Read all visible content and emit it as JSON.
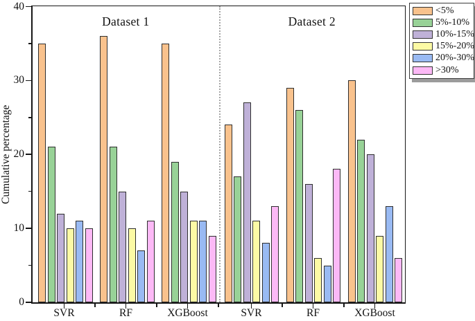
{
  "chart_data": {
    "type": "bar",
    "title": "",
    "xlabel": "",
    "ylabel": "Cumulative percentage",
    "ylim": [
      0,
      40
    ],
    "yticks_major": [
      0,
      10,
      20,
      30,
      40
    ],
    "yticks_minor": [
      5,
      15,
      25,
      35
    ],
    "grid": false,
    "legend_position": "top-right",
    "series_names": [
      "<5%",
      "5%-10%",
      "10%-15%",
      "15%-20%",
      "20%-30%",
      ">30%"
    ],
    "series_colors": [
      "#F9C28D",
      "#98D297",
      "#BFB1D8",
      "#FCFAA5",
      "#99BAF3",
      "#FCB9F6"
    ],
    "panels": [
      {
        "label": "Dataset 1",
        "categories": [
          "SVR",
          "RF",
          "XGBoost"
        ],
        "series": [
          {
            "name": "<5%",
            "values": [
              35,
              36,
              35
            ]
          },
          {
            "name": "5%-10%",
            "values": [
              21,
              21,
              19
            ]
          },
          {
            "name": "10%-15%",
            "values": [
              12,
              15,
              15
            ]
          },
          {
            "name": "15%-20%",
            "values": [
              10,
              10,
              11
            ]
          },
          {
            "name": "20%-30%",
            "values": [
              11,
              7,
              11
            ]
          },
          {
            "name": ">30%",
            "values": [
              10,
              11,
              9
            ]
          }
        ]
      },
      {
        "label": "Dataset 2",
        "categories": [
          "SVR",
          "RF",
          "XGBoost"
        ],
        "series": [
          {
            "name": "<5%",
            "values": [
              24,
              29,
              30
            ]
          },
          {
            "name": "5%-10%",
            "values": [
              17,
              26,
              22
            ]
          },
          {
            "name": "10%-15%",
            "values": [
              27,
              16,
              20
            ]
          },
          {
            "name": "15%-20%",
            "values": [
              11,
              6,
              9
            ]
          },
          {
            "name": "20%-30%",
            "values": [
              8,
              5,
              13
            ]
          },
          {
            "name": ">30%",
            "values": [
              13,
              18,
              6
            ]
          }
        ]
      }
    ],
    "colors": {
      "bar_border": "#2E2E2E",
      "axis": "#161616",
      "divider": "#A6A6A6",
      "legend_shadow": "#9C9C9C",
      "background": "#FFFFFF"
    }
  },
  "legend": {
    "items": [
      {
        "label": "<5%",
        "color": "#F9C28D"
      },
      {
        "label": "5%-10%",
        "color": "#98D297"
      },
      {
        "label": "10%-15%",
        "color": "#BFB1D8"
      },
      {
        "label": "15%-20%",
        "color": "#FCFAA5"
      },
      {
        "label": "20%-30%",
        "color": "#99BAF3"
      },
      {
        "label": ">30%",
        "color": "#FCB9F6"
      }
    ]
  }
}
